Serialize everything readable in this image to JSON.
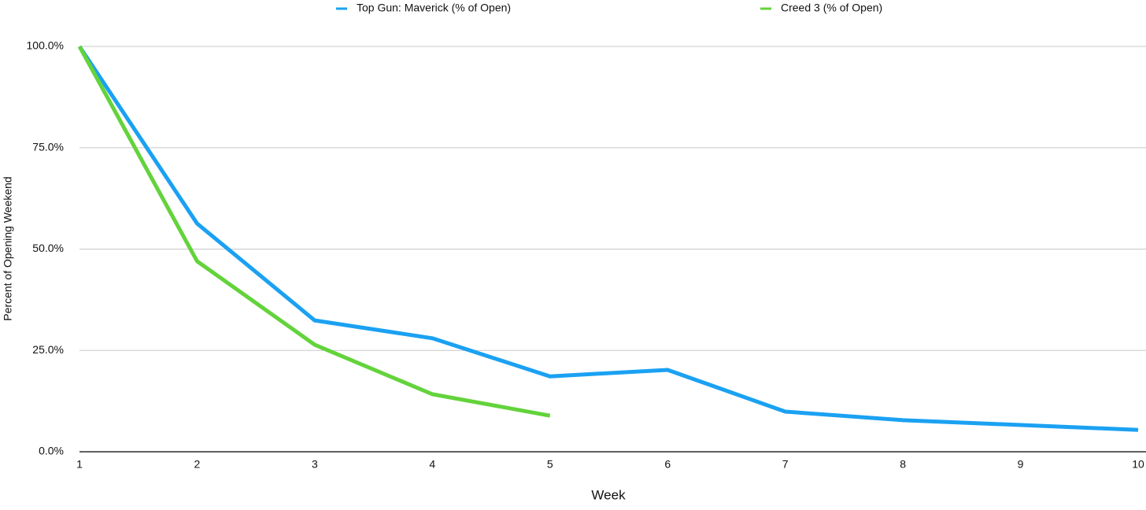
{
  "chart_data": {
    "type": "line",
    "x_label": "Week",
    "y_label": "Percent of Opening Weekend",
    "x": [
      1,
      2,
      3,
      4,
      5,
      6,
      7,
      8,
      9,
      10
    ],
    "series": [
      {
        "name": "Top Gun: Maverick (% of Open)",
        "color": "#1ba1f2",
        "values": [
          100,
          56.3,
          32.4,
          28.0,
          18.6,
          20.2,
          9.9,
          7.8,
          6.6,
          5.4
        ]
      },
      {
        "name": "Creed 3 (% of Open)",
        "color": "#63d33b",
        "values": [
          100,
          47.0,
          26.4,
          14.2,
          8.9,
          null,
          null,
          null,
          null,
          null
        ]
      }
    ],
    "xlim": [
      1,
      10
    ],
    "xticks": [
      1,
      2,
      3,
      4,
      5,
      6,
      7,
      8,
      9,
      10
    ],
    "ylim": [
      0,
      100
    ],
    "yticks": [
      {
        "value": 0,
        "label": "0.0%"
      },
      {
        "value": 25,
        "label": "25.0%"
      },
      {
        "value": 50,
        "label": "50.0%"
      },
      {
        "value": 75,
        "label": "75.0%"
      },
      {
        "value": 100,
        "label": "100.0%"
      }
    ],
    "grid": true
  }
}
